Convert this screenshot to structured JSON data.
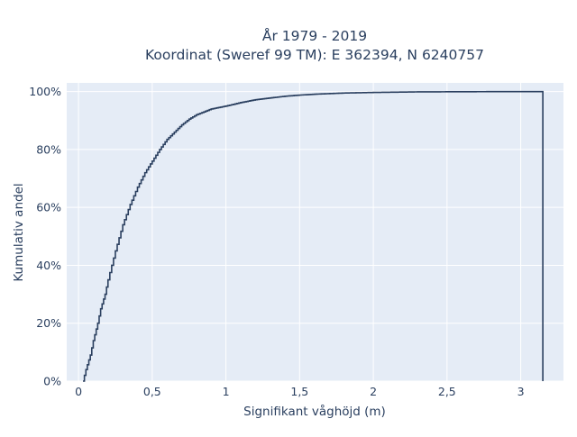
{
  "chart_data": {
    "type": "line",
    "line_shape": "step (empirical cumulative distribution)",
    "title_lines": [
      "År 1979 - 2019",
      "Koordinat (Sweref 99 TM): E 362394, N 6240757"
    ],
    "xlabel": "Signifikant våghöjd (m)",
    "ylabel": "Kumulativ andel",
    "xlim": [
      -0.08,
      3.29
    ],
    "ylim": [
      0,
      1.03
    ],
    "x_ticks": [
      0,
      0.5,
      1,
      1.5,
      2,
      2.5,
      3
    ],
    "x_tick_labels": [
      "0",
      "0,5",
      "1",
      "1,5",
      "2",
      "2,5",
      "3"
    ],
    "y_ticks": [
      0,
      0.2,
      0.4,
      0.6,
      0.8,
      1.0
    ],
    "y_tick_labels": [
      "0%",
      "20%",
      "40%",
      "60%",
      "80%",
      "100%"
    ],
    "grid": true,
    "colors": {
      "background": "#e5ecf6",
      "grid": "#ffffff",
      "line": "#2a3f5f",
      "text": "#2a3f5f"
    },
    "series": [
      {
        "x": [
          0.03,
          0.05,
          0.08,
          0.1,
          0.13,
          0.15,
          0.18,
          0.2,
          0.25,
          0.3,
          0.35,
          0.4,
          0.45,
          0.5,
          0.55,
          0.6,
          0.65,
          0.7,
          0.75,
          0.8,
          0.85,
          0.9,
          0.95,
          1.0,
          1.1,
          1.2,
          1.3,
          1.4,
          1.5,
          1.6,
          1.8,
          2.0,
          2.3,
          2.6,
          3.0,
          3.15
        ],
        "y": [
          0.0,
          0.04,
          0.09,
          0.14,
          0.2,
          0.25,
          0.3,
          0.35,
          0.45,
          0.54,
          0.61,
          0.67,
          0.72,
          0.76,
          0.8,
          0.835,
          0.86,
          0.885,
          0.905,
          0.92,
          0.93,
          0.94,
          0.945,
          0.95,
          0.962,
          0.972,
          0.978,
          0.984,
          0.988,
          0.991,
          0.995,
          0.997,
          0.999,
          0.9995,
          1.0,
          1.0
        ]
      }
    ]
  }
}
